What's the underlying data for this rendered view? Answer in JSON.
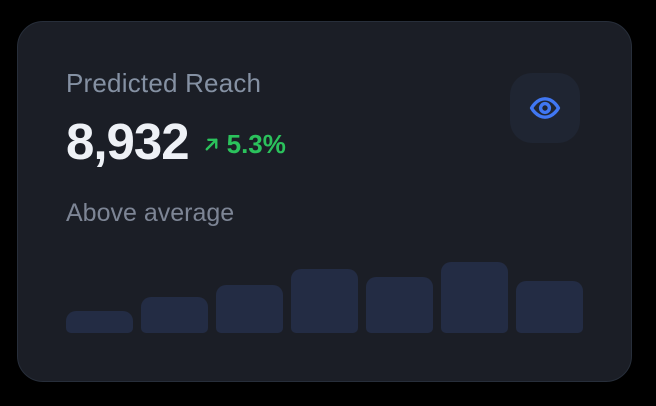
{
  "card": {
    "title": "Predicted Reach",
    "value": "8,932",
    "delta": "5.3%",
    "delta_direction": "up",
    "subtitle": "Above average",
    "icons": {
      "trend": "trend-up-right-icon",
      "action": "eye-icon"
    }
  },
  "colors": {
    "page_bg": "#000000",
    "card_bg": "#1b1e26",
    "card_border": "#272e3a",
    "title": "#8591a3",
    "value": "#eef1f6",
    "delta": "#2bc25c",
    "subtitle": "#7d8595",
    "bar": "#232c44",
    "eye_button_bg": "#1f2532",
    "eye_icon": "#4077f3"
  },
  "chart_data": {
    "type": "bar",
    "categories": [
      "",
      "",
      "",
      "",
      "",
      "",
      ""
    ],
    "values": [
      22,
      36,
      48,
      64,
      56,
      71,
      52
    ],
    "title": "",
    "xlabel": "",
    "ylabel": "",
    "ylim": [
      0,
      72
    ],
    "legend": false,
    "grid": false,
    "notes": "unlabeled sparkline bars; values are relative pixel heights"
  }
}
